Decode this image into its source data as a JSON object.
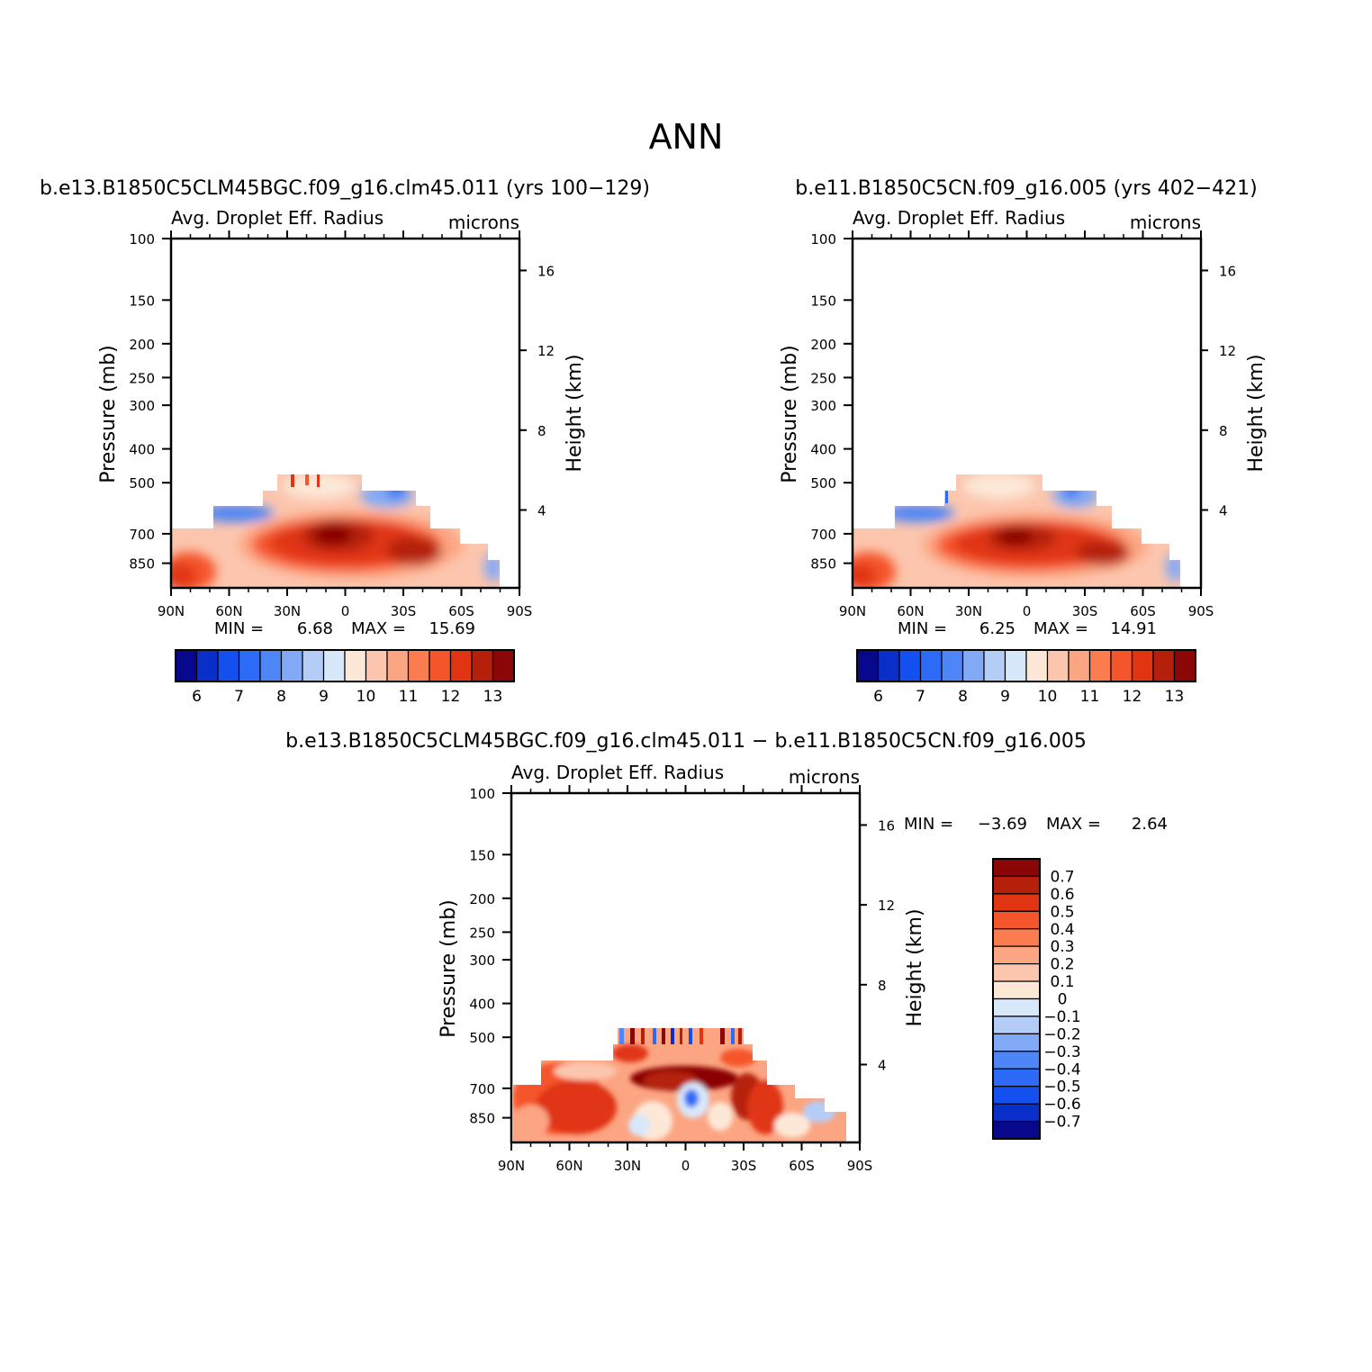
{
  "main_title": "ANN",
  "chart_data": [
    {
      "type": "heatmap",
      "id": "p1",
      "case_title": "b.e13.B1850C5CLM45BGC.f09_g16.clm45.011 (yrs 100−129)",
      "title": "Avg. Droplet Eff. Radius",
      "units": "microns",
      "ylabel": "Pressure (mb)",
      "ylabel_right": "Height (km)",
      "x_ticks": [
        "90N",
        "60N",
        "30N",
        "0",
        "30S",
        "60S",
        "90S"
      ],
      "y_ticks": [
        "100",
        "150",
        "200",
        "250",
        "300",
        "400",
        "500",
        "700",
        "850"
      ],
      "y_ticks_right": [
        "16",
        "12",
        "8",
        "4"
      ],
      "min_label": "MIN =",
      "min_value": "6.68",
      "max_label": "MAX =",
      "max_value": "15.69",
      "colorbar_labels": [
        "6",
        "7",
        "8",
        "9",
        "10",
        "11",
        "12",
        "13"
      ],
      "colorbar_colors": [
        "#08088c",
        "#0a2fc8",
        "#1450ef",
        "#2d6af5",
        "#4e85f7",
        "#82a9f5",
        "#b4cdf7",
        "#d8e8fb",
        "#fde8d8",
        "#fcc6ae",
        "#fca582",
        "#fa7c4f",
        "#f5552b",
        "#e03412",
        "#b5200a",
        "#8b0606"
      ]
    },
    {
      "type": "heatmap",
      "id": "p2",
      "case_title": "b.e11.B1850C5CN.f09_g16.005 (yrs 402−421)",
      "title": "Avg. Droplet Eff. Radius",
      "units": "microns",
      "ylabel": "Pressure (mb)",
      "ylabel_right": "Height (km)",
      "x_ticks": [
        "90N",
        "60N",
        "30N",
        "0",
        "30S",
        "60S",
        "90S"
      ],
      "y_ticks": [
        "100",
        "150",
        "200",
        "250",
        "300",
        "400",
        "500",
        "700",
        "850"
      ],
      "y_ticks_right": [
        "16",
        "12",
        "8",
        "4"
      ],
      "min_label": "MIN =",
      "min_value": "6.25",
      "max_label": "MAX =",
      "max_value": "14.91",
      "colorbar_labels": [
        "6",
        "7",
        "8",
        "9",
        "10",
        "11",
        "12",
        "13"
      ],
      "colorbar_colors": [
        "#08088c",
        "#0a2fc8",
        "#1450ef",
        "#2d6af5",
        "#4e85f7",
        "#82a9f5",
        "#b4cdf7",
        "#d8e8fb",
        "#fde8d8",
        "#fcc6ae",
        "#fca582",
        "#fa7c4f",
        "#f5552b",
        "#e03412",
        "#b5200a",
        "#8b0606"
      ]
    },
    {
      "type": "heatmap",
      "id": "p3",
      "case_title": "b.e13.B1850C5CLM45BGC.f09_g16.clm45.011 − b.e11.B1850C5CN.f09_g16.005",
      "title": "Avg. Droplet Eff. Radius",
      "units": "microns",
      "ylabel": "Pressure (mb)",
      "ylabel_right": "Height (km)",
      "x_ticks": [
        "90N",
        "60N",
        "30N",
        "0",
        "30S",
        "60S",
        "90S"
      ],
      "y_ticks": [
        "100",
        "150",
        "200",
        "250",
        "300",
        "400",
        "500",
        "700",
        "850"
      ],
      "y_ticks_right": [
        "16",
        "12",
        "8",
        "4"
      ],
      "min_label": "MIN =",
      "min_value": "−3.69",
      "max_label": "MAX =",
      "max_value": "2.64",
      "colorbar_labels": [
        "0.7",
        "0.6",
        "0.5",
        "0.4",
        "0.3",
        "0.2",
        "0.1",
        "0",
        "−0.1",
        "−0.2",
        "−0.3",
        "−0.4",
        "−0.5",
        "−0.6",
        "−0.7"
      ],
      "colorbar_colors": [
        "#8b0606",
        "#b5200a",
        "#e03412",
        "#f5552b",
        "#fa7c4f",
        "#fca582",
        "#fcc6ae",
        "#fde8d8",
        "#d8e8fb",
        "#b4cdf7",
        "#82a9f5",
        "#4e85f7",
        "#2d6af5",
        "#1450ef",
        "#0a2fc8",
        "#08088c"
      ]
    }
  ]
}
